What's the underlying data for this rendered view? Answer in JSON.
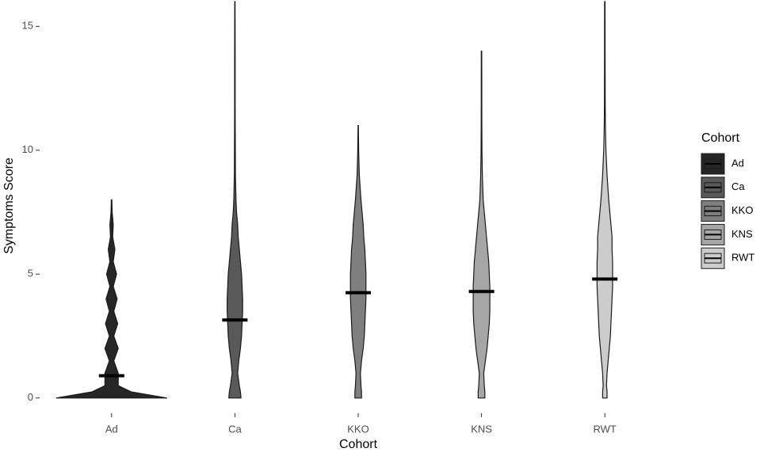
{
  "chart_data": {
    "type": "violin",
    "x_label": "Cohort",
    "y_label": "Symptoms Score",
    "categories": [
      "Ad",
      "Ca",
      "KKO",
      "KNS",
      "RWT"
    ],
    "ylim": [
      -0.55,
      16.0
    ],
    "yticks": [
      0,
      5,
      10,
      15
    ],
    "legend_title": "Cohort",
    "legend": "right",
    "density_y": [
      0,
      0.25,
      0.5,
      1,
      1.5,
      2,
      2.5,
      3,
      3.5,
      4,
      4.5,
      5,
      5.5,
      6,
      6.5,
      7,
      7.5,
      8,
      9,
      10,
      11,
      12,
      13,
      14,
      15,
      16
    ],
    "series": [
      {
        "name": "Ad",
        "color": "#262626",
        "median": 0.9,
        "density": [
          1.0,
          0.35,
          0.12,
          0.12,
          0.04,
          0.12,
          0.04,
          0.11,
          0.04,
          0.1,
          0.03,
          0.09,
          0.03,
          0.06,
          0.02,
          0.03,
          0.01,
          0.005,
          null,
          null,
          null,
          null,
          null,
          null,
          null,
          null
        ]
      },
      {
        "name": "Ca",
        "color": "#595959",
        "median": 3.15,
        "density": [
          0.11,
          0.1,
          0.08,
          0.05,
          0.07,
          0.1,
          0.12,
          0.13,
          0.14,
          0.14,
          0.13,
          0.12,
          0.1,
          0.08,
          0.06,
          0.05,
          0.03,
          0.02,
          0.01,
          0.008,
          0.006,
          0.005,
          0.005,
          0.005,
          0.004,
          0.003
        ]
      },
      {
        "name": "KKO",
        "color": "#7f7f7f",
        "median": 4.25,
        "density": [
          0.06,
          0.06,
          0.05,
          0.04,
          0.06,
          0.09,
          0.11,
          0.12,
          0.13,
          0.14,
          0.14,
          0.14,
          0.13,
          0.12,
          0.1,
          0.09,
          0.07,
          0.05,
          0.02,
          0.008,
          0.003,
          null,
          null,
          null,
          null,
          null
        ]
      },
      {
        "name": "KNS",
        "color": "#a6a6a6",
        "median": 4.3,
        "density": [
          0.06,
          0.06,
          0.05,
          0.04,
          0.07,
          0.1,
          0.12,
          0.14,
          0.15,
          0.15,
          0.15,
          0.14,
          0.13,
          0.11,
          0.09,
          0.07,
          0.05,
          0.03,
          0.015,
          0.008,
          0.006,
          0.005,
          0.005,
          0.004,
          null,
          null
        ]
      },
      {
        "name": "RWT",
        "color": "#cccccc",
        "median": 4.8,
        "density": [
          0.04,
          0.04,
          0.03,
          0.04,
          0.06,
          0.08,
          0.1,
          0.11,
          0.12,
          0.13,
          0.14,
          0.14,
          0.14,
          0.13,
          0.13,
          0.11,
          0.09,
          0.07,
          0.04,
          0.02,
          0.01,
          0.007,
          0.006,
          0.005,
          0.005,
          0.004
        ]
      }
    ]
  }
}
